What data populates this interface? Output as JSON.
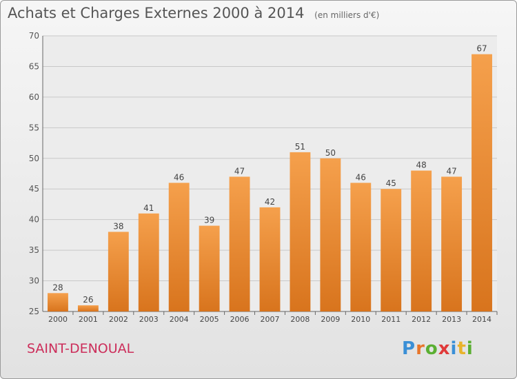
{
  "header": {
    "title": "Achats et Charges Externes 2000 à 2014",
    "unit": "(en milliers d'€)"
  },
  "footer": {
    "commune": "SAINT-DENOUAL",
    "brand": "Proxiti"
  },
  "colors": {
    "bar_top": "#f5a04c",
    "bar_bottom": "#d8741d",
    "commune": "#cc2d5a"
  },
  "chart_data": {
    "type": "bar",
    "title": "Achats et Charges Externes 2000 à 2014",
    "subtitle": "(en milliers d'€)",
    "categories": [
      "2000",
      "2001",
      "2002",
      "2003",
      "2004",
      "2005",
      "2006",
      "2007",
      "2008",
      "2009",
      "2010",
      "2011",
      "2012",
      "2013",
      "2014"
    ],
    "values": [
      28,
      26,
      38,
      41,
      46,
      39,
      47,
      42,
      51,
      50,
      46,
      45,
      48,
      47,
      67
    ],
    "ylim": [
      25,
      70
    ],
    "yticks": [
      25,
      30,
      35,
      40,
      45,
      50,
      55,
      60,
      65,
      70
    ],
    "grid": true,
    "data_labels": true
  }
}
